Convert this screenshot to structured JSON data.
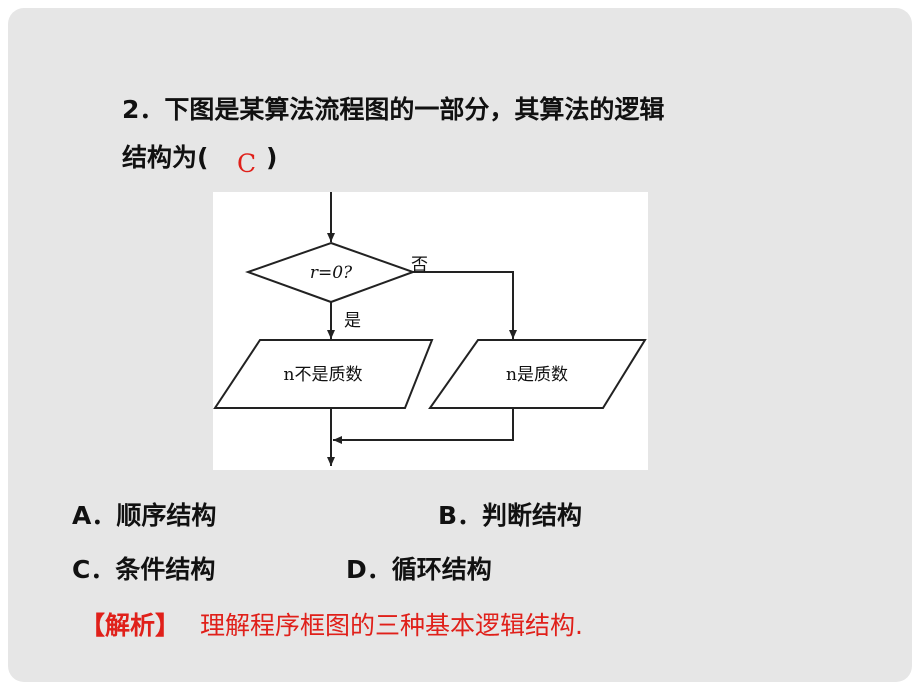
{
  "question": {
    "lines": [
      "2．下图是某算法流程图的一部分，其算法的逻辑",
      "结构为("
    ],
    "answer": "C",
    "close": ")"
  },
  "flowchart": {
    "decision": "r=0?",
    "no": "否",
    "yes": "是",
    "box_left": "n不是质数",
    "box_right": "n是质数"
  },
  "options": [
    "A．顺序结构",
    "B．判断结构",
    "C．条件结构",
    "D．循环结构"
  ],
  "analysis": {
    "label": "【解析】",
    "text": "理解程序框图的三种基本逻辑结构."
  }
}
